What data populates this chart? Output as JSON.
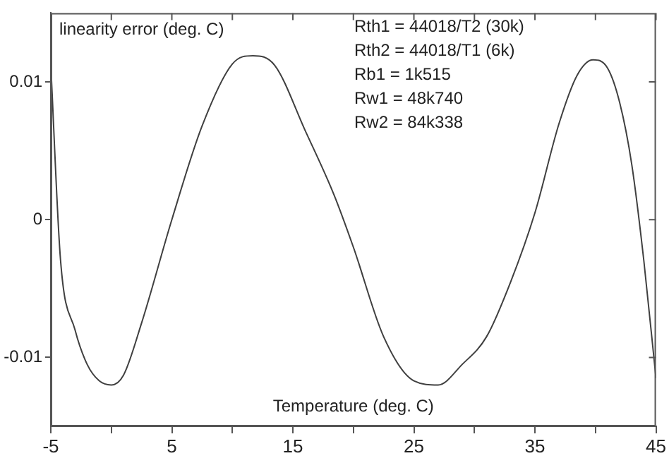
{
  "chart_data": {
    "type": "line",
    "xlabel": "Temperature (deg. C)",
    "ylabel": "linearity error (deg. C)",
    "annotations": [
      "Rth1 = 44018/T2 (30k)",
      "Rth2 = 44018/T1 (6k)",
      "Rb1 = 1k515",
      "Rw1 = 48k740",
      "Rw2 = 84k338"
    ],
    "series": [
      {
        "color": "#404040",
        "x": [
          -5,
          -4.2,
          -3,
          -2,
          -1,
          0,
          1,
          2.5,
          5,
          7.5,
          10,
          11.7,
          13.5,
          16,
          18.4,
          20,
          22.5,
          25,
          27,
          29,
          31,
          33,
          35,
          37,
          38.5,
          39.8,
          41,
          42,
          43,
          44,
          45
        ],
        "values": [
          0.0112,
          -0.0029,
          -0.008,
          -0.0105,
          -0.0117,
          -0.012,
          -0.0113,
          -0.0075,
          0,
          0.0068,
          0.0113,
          0.0119,
          0.0112,
          0.0065,
          0.0018,
          -0.002,
          -0.0085,
          -0.0117,
          -0.012,
          -0.0105,
          -0.0085,
          -0.0045,
          0.0005,
          0.007,
          0.0105,
          0.0116,
          0.011,
          0.0085,
          0.004,
          -0.003,
          -0.0115
        ]
      }
    ],
    "xlim": [
      -5,
      45
    ],
    "xticks": [
      -5,
      {
        "value": 0,
        "label": null
      },
      5,
      {
        "value": 10,
        "label": null
      },
      15,
      {
        "value": 20,
        "label": null
      },
      25,
      {
        "value": 30,
        "label": null
      },
      35,
      {
        "value": 40,
        "label": null
      },
      45
    ],
    "ylim": [
      -0.015,
      0.015
    ],
    "yticks": [
      -0.01,
      0,
      0.01
    ],
    "grid": false,
    "legend": false,
    "marker": "none",
    "line_style": "solid"
  }
}
